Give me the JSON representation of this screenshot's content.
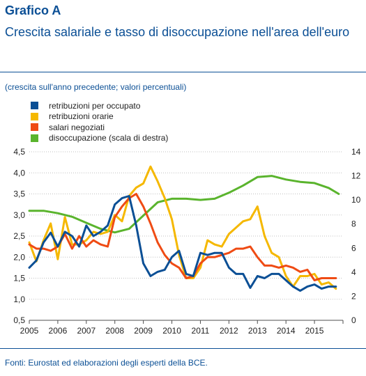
{
  "title": "Grafico A",
  "subtitle": "Crescita salariale e tasso di disoccupazione nell'area dell'euro",
  "note": "(crescita sull'anno precedente; valori percentuali)",
  "source": "Fonti: Eurostat ed elaborazioni degli esperti della BCE.",
  "chart_data": {
    "type": "line",
    "x_ticks": [
      "2005",
      "2006",
      "2007",
      "2008",
      "2009",
      "2010",
      "2011",
      "2012",
      "2013",
      "2014",
      "2015"
    ],
    "x_range": [
      2005,
      2016
    ],
    "y_left_ticks": [
      "0,5",
      "1,0",
      "1,5",
      "2,0",
      "2,5",
      "3,0",
      "3,5",
      "4,0",
      "4,5"
    ],
    "y_left_range": [
      0.5,
      4.5
    ],
    "y_right_ticks": [
      "0",
      "2",
      "4",
      "6",
      "8",
      "10",
      "12",
      "14"
    ],
    "y_right_range": [
      0,
      14
    ],
    "grid": "horizontal",
    "legend_position": "top-left",
    "series": [
      {
        "name": "retribuzioni per occupato",
        "color": "#0b4f95",
        "axis": "left",
        "x": [
          2005.0,
          2005.25,
          2005.5,
          2005.75,
          2006.0,
          2006.25,
          2006.5,
          2006.75,
          2007.0,
          2007.25,
          2007.5,
          2007.75,
          2008.0,
          2008.25,
          2008.5,
          2008.75,
          2009.0,
          2009.25,
          2009.5,
          2009.75,
          2010.0,
          2010.25,
          2010.5,
          2010.75,
          2011.0,
          2011.25,
          2011.5,
          2011.75,
          2012.0,
          2012.25,
          2012.5,
          2012.75,
          2013.0,
          2013.25,
          2013.5,
          2013.75,
          2014.0,
          2014.25,
          2014.5,
          2014.75,
          2015.0,
          2015.25,
          2015.5,
          2015.75
        ],
        "values": [
          1.75,
          1.92,
          2.35,
          2.58,
          2.25,
          2.6,
          2.5,
          2.25,
          2.75,
          2.5,
          2.6,
          2.75,
          3.25,
          3.4,
          3.45,
          2.75,
          1.85,
          1.55,
          1.65,
          1.7,
          2.0,
          2.15,
          1.6,
          1.55,
          2.1,
          2.05,
          2.1,
          2.1,
          1.75,
          1.6,
          1.6,
          1.27,
          1.55,
          1.5,
          1.6,
          1.6,
          1.45,
          1.3,
          1.2,
          1.3,
          1.35,
          1.25,
          1.3,
          1.3
        ]
      },
      {
        "name": "retribuzioni orarie",
        "color": "#f5b800",
        "axis": "left",
        "x": [
          2005.0,
          2005.25,
          2005.5,
          2005.75,
          2006.0,
          2006.25,
          2006.5,
          2006.75,
          2007.0,
          2007.25,
          2007.5,
          2007.75,
          2008.0,
          2008.25,
          2008.5,
          2008.75,
          2009.0,
          2009.25,
          2009.5,
          2009.75,
          2010.0,
          2010.25,
          2010.5,
          2010.75,
          2011.0,
          2011.25,
          2011.5,
          2011.75,
          2012.0,
          2012.25,
          2012.5,
          2012.75,
          2013.0,
          2013.25,
          2013.5,
          2013.75,
          2014.0,
          2014.25,
          2014.5,
          2014.75,
          2015.0,
          2015.25,
          2015.5,
          2015.75
        ],
        "values": [
          2.35,
          1.9,
          2.4,
          2.8,
          1.95,
          2.95,
          2.3,
          2.3,
          2.4,
          2.6,
          2.55,
          2.6,
          3.0,
          2.85,
          3.45,
          3.65,
          3.75,
          4.15,
          3.8,
          3.4,
          2.9,
          2.05,
          1.5,
          1.5,
          1.75,
          2.4,
          2.3,
          2.25,
          2.55,
          2.7,
          2.85,
          2.9,
          3.2,
          2.5,
          2.1,
          2.0,
          1.55,
          1.3,
          1.55,
          1.55,
          1.6,
          1.35,
          1.4,
          1.25
        ]
      },
      {
        "name": "salari negoziati",
        "color": "#ef4b14",
        "axis": "left",
        "x": [
          2005.0,
          2005.25,
          2005.5,
          2005.75,
          2006.0,
          2006.25,
          2006.5,
          2006.75,
          2007.0,
          2007.25,
          2007.5,
          2007.75,
          2008.0,
          2008.25,
          2008.5,
          2008.75,
          2009.0,
          2009.25,
          2009.5,
          2009.75,
          2010.0,
          2010.25,
          2010.5,
          2010.75,
          2011.0,
          2011.25,
          2011.5,
          2011.75,
          2012.0,
          2012.25,
          2012.5,
          2012.75,
          2013.0,
          2013.25,
          2013.5,
          2013.75,
          2014.0,
          2014.25,
          2014.5,
          2014.75,
          2015.0,
          2015.25,
          2015.5,
          2015.75
        ],
        "values": [
          2.3,
          2.2,
          2.2,
          2.15,
          2.25,
          2.55,
          2.2,
          2.5,
          2.25,
          2.4,
          2.3,
          2.25,
          2.95,
          3.2,
          3.4,
          3.5,
          3.2,
          2.8,
          2.35,
          2.05,
          1.85,
          1.75,
          1.5,
          1.55,
          1.85,
          2.0,
          2.0,
          2.05,
          2.1,
          2.2,
          2.2,
          2.25,
          2.0,
          1.8,
          1.8,
          1.75,
          1.8,
          1.75,
          1.65,
          1.7,
          1.45,
          1.5,
          1.5,
          1.5
        ]
      },
      {
        "name": "disoccupazione (scala di destra)",
        "color": "#5ab42d",
        "axis": "right",
        "x": [
          2005.0,
          2005.5,
          2006.0,
          2006.5,
          2007.0,
          2007.5,
          2008.0,
          2008.5,
          2009.0,
          2009.5,
          2010.0,
          2010.5,
          2011.0,
          2011.5,
          2012.0,
          2012.5,
          2013.0,
          2013.5,
          2014.0,
          2014.5,
          2015.0,
          2015.5,
          2015.85
        ],
        "values": [
          9.1,
          9.1,
          8.9,
          8.6,
          8.1,
          7.6,
          7.3,
          7.6,
          8.7,
          9.8,
          10.1,
          10.1,
          10.0,
          10.1,
          10.6,
          11.2,
          11.9,
          12.0,
          11.7,
          11.5,
          11.4,
          11.0,
          10.5
        ]
      }
    ]
  }
}
